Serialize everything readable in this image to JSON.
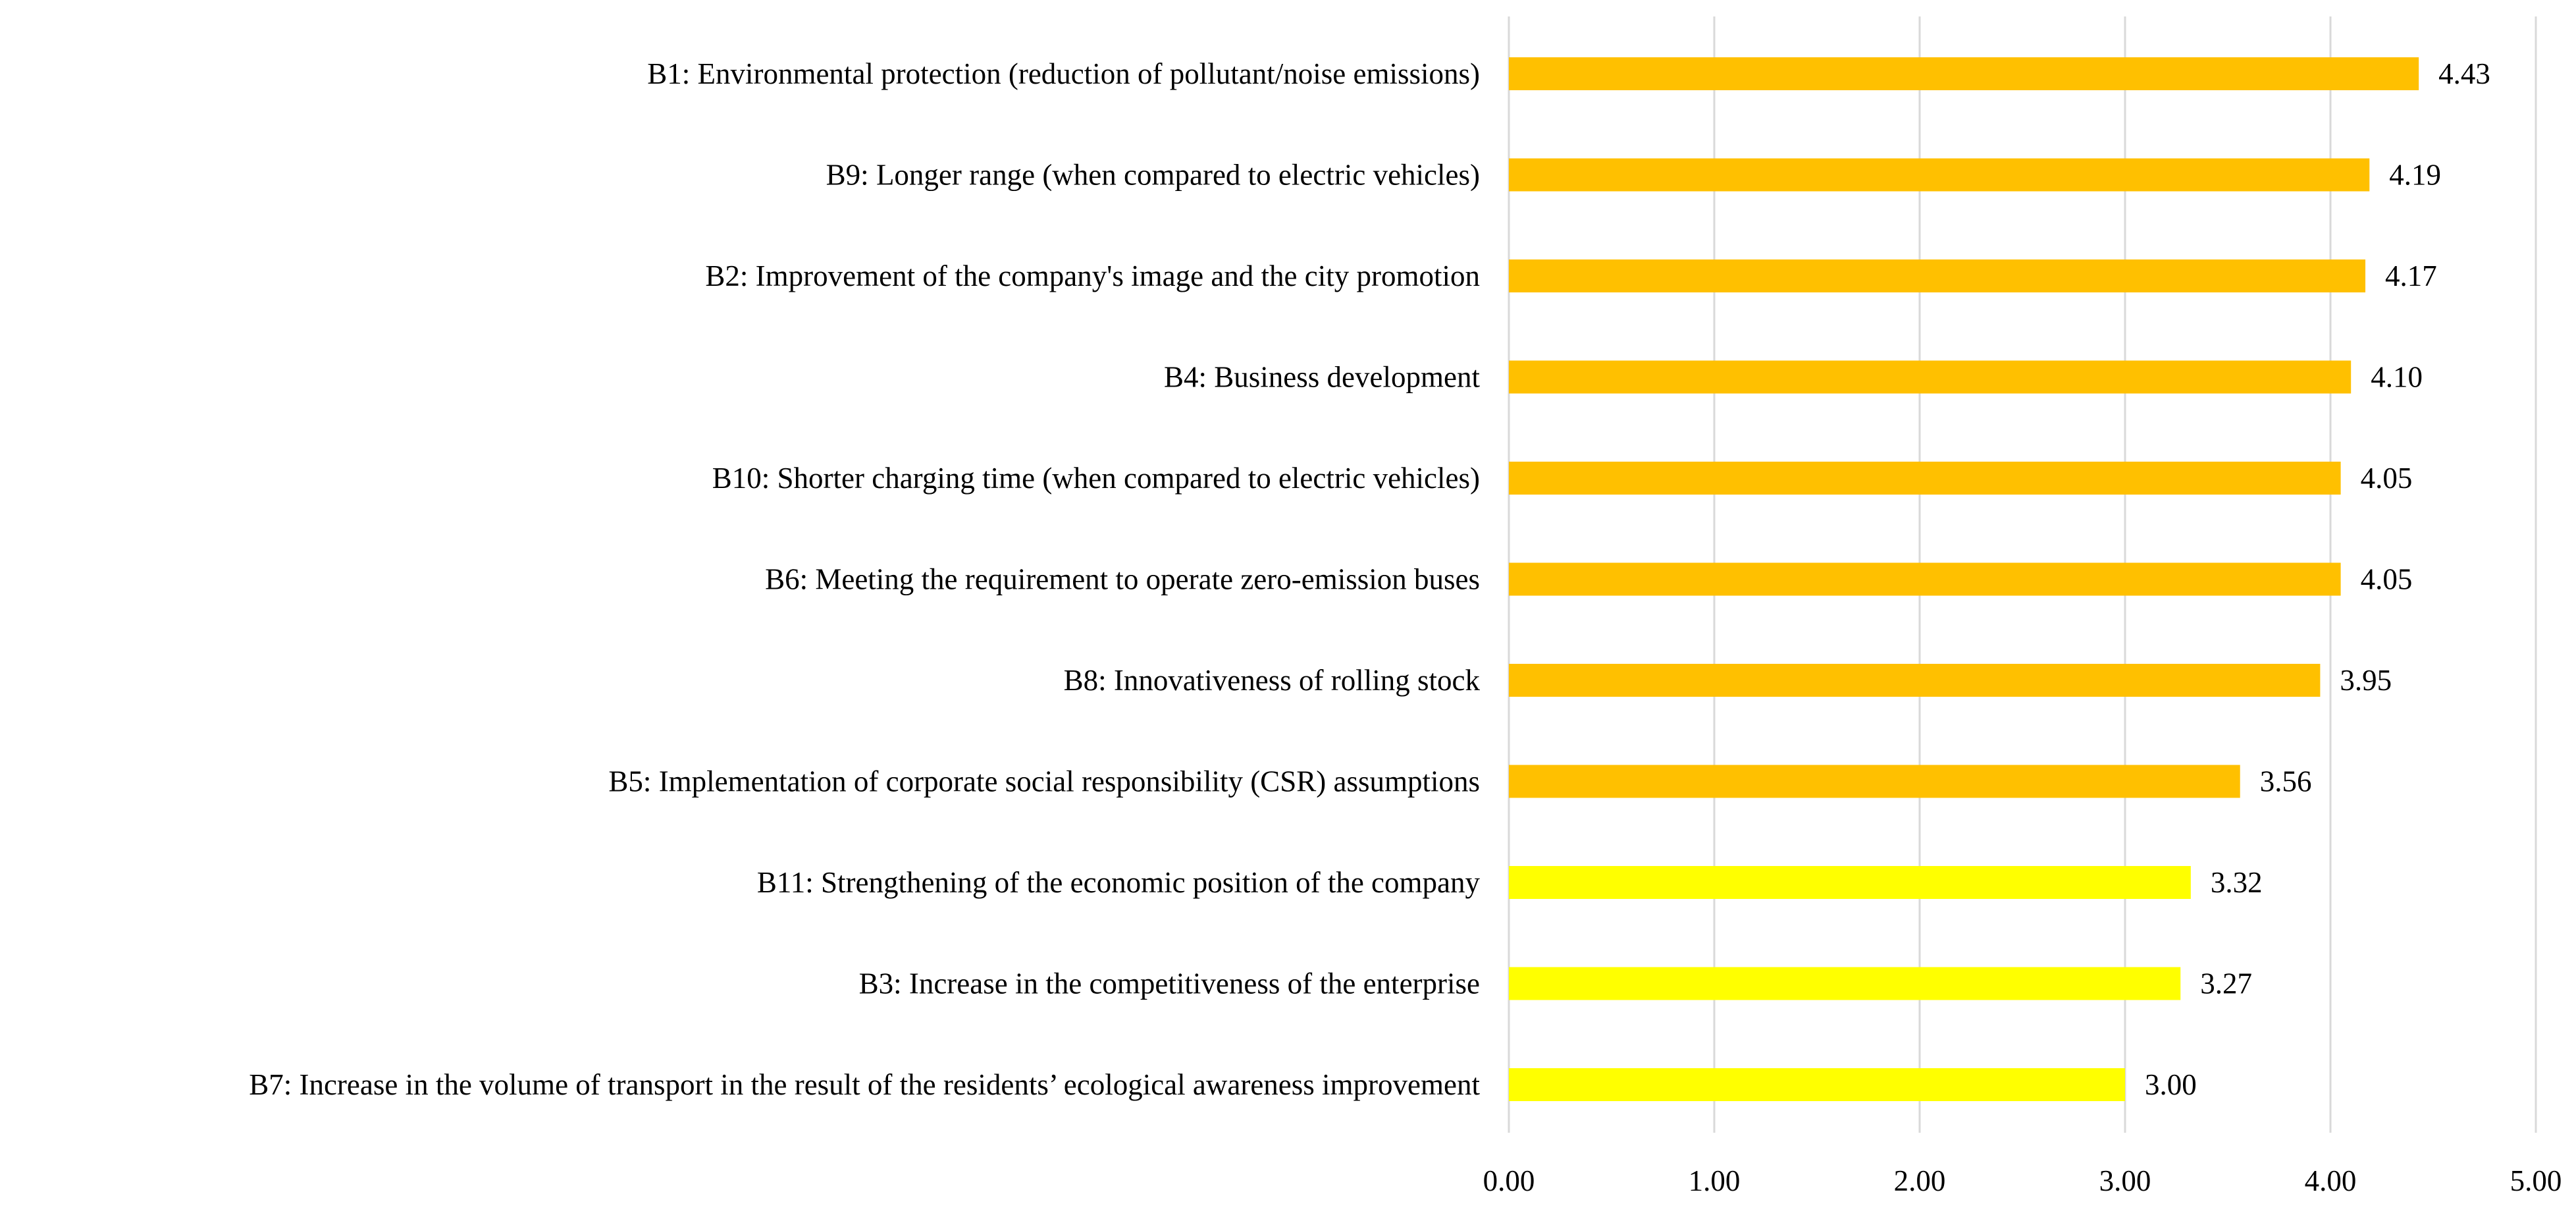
{
  "chart_data": {
    "type": "bar",
    "orientation": "horizontal",
    "title": "",
    "xlabel": "",
    "ylabel": "",
    "xlim": [
      0,
      5
    ],
    "x_ticks": [
      "0.00",
      "1.00",
      "2.00",
      "3.00",
      "4.00",
      "5.00"
    ],
    "grid": "vertical gridlines",
    "legend": "none",
    "categories": [
      "B1: Environmental protection (reduction of pollutant/noise emissions)",
      "B9: Longer range (when compared to electric vehicles)",
      "B2: Improvement of the company's image and the city promotion",
      "B4: Business development",
      "B10: Shorter charging time (when compared to electric vehicles)",
      "B6: Meeting the requirement to operate zero-emission buses",
      "B8: Innovativeness of rolling stock",
      "B5: Implementation of corporate social responsibility (CSR) assumptions",
      "B11: Strengthening of the economic position of the company",
      "B3: Increase in the competitiveness of the enterprise",
      "B7: Increase in the volume of transport in the result of the residents’ ecological awareness improvement"
    ],
    "values": [
      4.43,
      4.19,
      4.17,
      4.1,
      4.05,
      4.05,
      3.95,
      3.56,
      3.32,
      3.27,
      3.0
    ],
    "value_labels": [
      "4.43",
      "4.19",
      "4.17",
      "4.10",
      "4.05",
      "4.05",
      "3.95",
      "3.56",
      "3.32",
      "3.27",
      "3.00"
    ],
    "bar_colors": [
      "#FFC000",
      "#FFC000",
      "#FFC000",
      "#FFC000",
      "#FFC000",
      "#FFC000",
      "#FFC000",
      "#FFC000",
      "#FFFF00",
      "#FFFF00",
      "#FFFF00"
    ],
    "gridline_color": "#D9D9D9"
  }
}
